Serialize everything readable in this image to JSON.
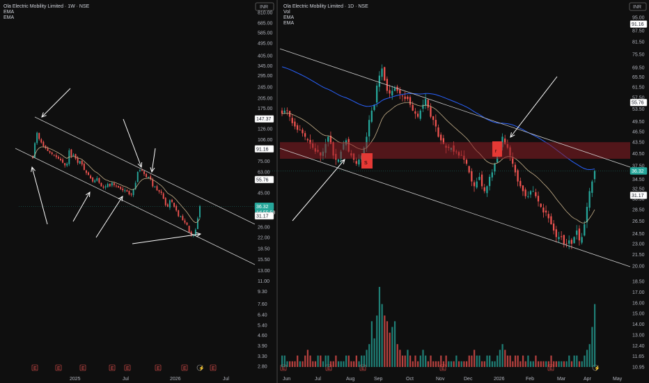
{
  "colors": {
    "background": "#0f0f0f",
    "up": "#26a69a",
    "down": "#ef5350",
    "ema_slow": "#2962ff",
    "ema_fast": "#c8b28c",
    "zone": "#8b1e24",
    "annotation": "#ffffff",
    "grid_text": "#b2b5be"
  },
  "chart_data": [
    {
      "type": "candlestick",
      "title": "Ola Electric Mobility Limited · 1W · NSE",
      "indicators": [
        "EMA",
        "EMA"
      ],
      "currency": "INR",
      "scale": "log",
      "y_ticks": [
        "810.00",
        "685.00",
        "585.00",
        "495.00",
        "405.00",
        "345.00",
        "295.00",
        "245.00",
        "205.00",
        "175.00",
        "147.37",
        "126.00",
        "106.00",
        "91.16",
        "75.00",
        "63.00",
        "55.76",
        "45.00",
        "36.32",
        "31.17",
        "26.00",
        "22.00",
        "18.50",
        "15.50",
        "13.00",
        "11.00",
        "9.30",
        "7.60",
        "6.40",
        "5.40",
        "4.60",
        "3.90",
        "3.30",
        "2.80"
      ],
      "price_badges": [
        {
          "value": "147.37",
          "style": "outline"
        },
        {
          "value": "91.16",
          "style": "outline"
        },
        {
          "value": "55.76",
          "style": "outline"
        },
        {
          "value": "36.32",
          "style": "filled",
          "countdown": "1d 55:58"
        },
        {
          "value": "31.17",
          "style": "outline"
        }
      ],
      "x_ticks": [
        "2025",
        "Jul",
        "2026",
        "Jul"
      ],
      "event_markers": [
        "E",
        "E",
        "E",
        "E",
        "E",
        "E",
        "E",
        "⚡",
        "E"
      ],
      "close_series": [
        79,
        100,
        118,
        107,
        101,
        95,
        92,
        88,
        86,
        84,
        82,
        80,
        78,
        76,
        73,
        70,
        72,
        89,
        81,
        83,
        78,
        73,
        75,
        71,
        65,
        62,
        60,
        57,
        54,
        55,
        57,
        53,
        50,
        49,
        50,
        52,
        50,
        53,
        51,
        50,
        49,
        48,
        47,
        47,
        46,
        44,
        44,
        48,
        53,
        63,
        65,
        64,
        61,
        58,
        58,
        56,
        50,
        50,
        47,
        46,
        45,
        41,
        37,
        36,
        40,
        39,
        36,
        34,
        31,
        31,
        29,
        28,
        27,
        24,
        23,
        23,
        25,
        30,
        36.32
      ],
      "ema_fast_values": [
        75.76,
        58.23
      ],
      "annotations": "white arrows marking touches of a descending channel"
    },
    {
      "type": "candlestick",
      "title": "Ola Electric Mobility Limited · 1D · NSE",
      "indicators": [
        "Vol",
        "EMA",
        "EMA"
      ],
      "currency": "INR",
      "scale": "log",
      "y_ticks": [
        "95.00",
        "87.50",
        "81.50",
        "75.50",
        "69.50",
        "65.50",
        "61.50",
        "57.50",
        "53.50",
        "49.50",
        "46.50",
        "43.50",
        "40.50",
        "37.50",
        "34.50",
        "32.50",
        "30.50",
        "28.50",
        "26.50",
        "24.50",
        "23.00",
        "21.50",
        "20.00",
        "18.50",
        "17.00",
        "16.00",
        "15.00",
        "14.00",
        "13.00",
        "12.40",
        "11.65",
        "10.95"
      ],
      "price_badges": [
        {
          "value": "91.16",
          "style": "outline"
        },
        {
          "value": "55.76",
          "style": "outline"
        },
        {
          "value": "36.32",
          "style": "filled"
        },
        {
          "value": "31.17",
          "style": "outline"
        }
      ],
      "x_ticks": [
        "Jun",
        "Jul",
        "Aug",
        "Sep",
        "Oct",
        "Nov",
        "Dec",
        "2026",
        "Feb",
        "Mar",
        "Apr",
        "May"
      ],
      "event_markers": [
        "E",
        "E",
        "E",
        "E",
        "E",
        "⚡"
      ],
      "close_series": [
        52,
        53,
        53,
        51,
        49,
        48,
        47,
        47,
        46,
        45,
        44,
        43,
        42,
        41,
        41,
        40,
        41,
        43,
        45,
        43,
        40,
        39,
        39,
        41,
        43,
        44,
        41,
        40,
        39,
        38,
        39,
        40,
        42,
        45,
        50,
        53,
        55,
        62,
        66,
        69,
        64,
        60,
        59,
        60,
        61,
        60,
        59,
        58,
        57,
        57,
        55,
        53,
        52,
        51,
        53,
        55,
        57,
        54,
        51,
        50,
        48,
        45,
        44,
        43,
        42,
        42,
        42,
        41,
        41,
        40,
        40,
        39,
        38,
        36,
        34,
        33,
        34,
        35,
        33,
        32,
        33,
        35,
        36,
        38,
        40,
        42,
        45,
        43,
        42,
        40,
        38,
        36,
        34,
        33,
        32,
        31,
        31,
        32,
        32,
        31,
        30,
        29,
        28,
        28,
        27,
        26,
        25,
        24,
        24,
        24,
        23,
        23,
        23.5,
        23,
        24,
        25,
        23.5,
        24,
        26,
        29,
        32,
        34,
        36.32
      ],
      "zone": {
        "low": 39.2,
        "high": 43.5,
        "labels": [
          "S",
          "r"
        ]
      },
      "volume": [
        2,
        2,
        1,
        1,
        1,
        1,
        2,
        1,
        1,
        2,
        3,
        2,
        1,
        1,
        2,
        2,
        1,
        2,
        2,
        1,
        1,
        2,
        1,
        1,
        1,
        2,
        2,
        1,
        1,
        2,
        1,
        2,
        2,
        3,
        4,
        8,
        5,
        9,
        14,
        11,
        9,
        8,
        6,
        7,
        8,
        4,
        3,
        2,
        2,
        3,
        2,
        1,
        2,
        1,
        2,
        3,
        2,
        1,
        2,
        1,
        1,
        1,
        2,
        1,
        2,
        1,
        1,
        1,
        2,
        1,
        1,
        1,
        1,
        2,
        2,
        3,
        2,
        2,
        1,
        1,
        2,
        2,
        1,
        1,
        2,
        3,
        4,
        3,
        2,
        2,
        1,
        2,
        2,
        1,
        2,
        1,
        2,
        1,
        1,
        2,
        1,
        1,
        1,
        1,
        1,
        2,
        1,
        1,
        1,
        1,
        1,
        1,
        2,
        1,
        2,
        2,
        1,
        1,
        2,
        3,
        4,
        7,
        11
      ]
    }
  ],
  "left": {
    "title_line": "Ola Electric Mobility Limited · 1W · NSE",
    "ema1": "EMA",
    "ema2": "EMA",
    "currency": "INR",
    "countdown": "1d 55:58"
  },
  "right": {
    "title_line": "Ola Electric Mobility Limited · 1D · NSE",
    "vol": "Vol",
    "ema1": "EMA",
    "ema2": "EMA",
    "currency": "INR",
    "zone_label_s": "S",
    "zone_label_r": "r"
  }
}
